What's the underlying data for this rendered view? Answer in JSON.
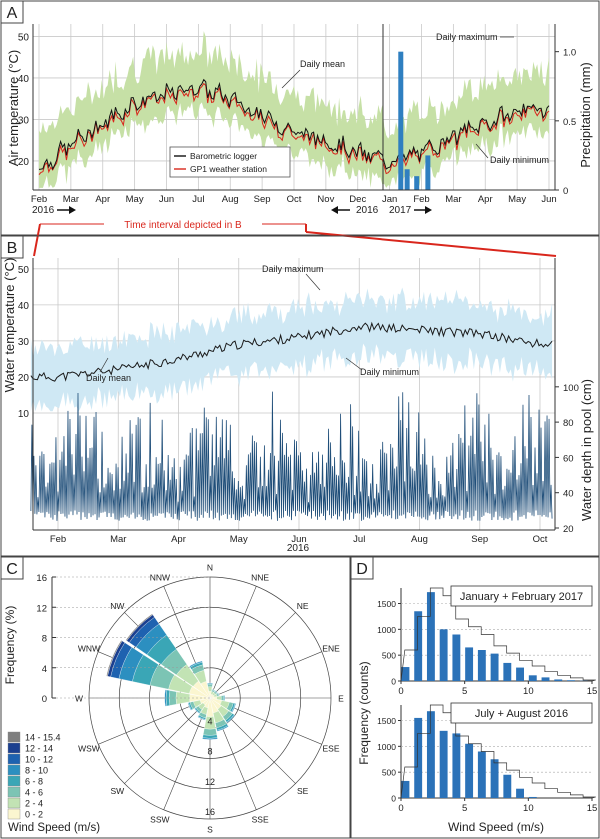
{
  "colors": {
    "frame": "#444444",
    "grid": "#c9c9c9",
    "air_band": "#c6e0a6",
    "logger_line": "#111111",
    "station_line": "#d9261c",
    "precip_bar": "#2f7fc0",
    "water_band": "#cfe8f4",
    "water_mean": "#1a1a1a",
    "depth_line": "#1f4e79",
    "interval_line": "#d9261c",
    "hist_bar": "#2b72b8"
  },
  "chart_data": [
    {
      "panel": "A",
      "type": "line",
      "label": "A",
      "ylabel": "Air temperature (°C)",
      "y2label": "Precipitation (mm)",
      "ylim": [
        13,
        53
      ],
      "yticks": [
        20,
        30,
        40,
        50
      ],
      "y2lim": [
        0,
        1.2
      ],
      "y2ticks": [
        "0",
        "0.5",
        "1.0"
      ],
      "x_months": [
        "Feb",
        "Mar",
        "Apr",
        "May",
        "Jun",
        "Jul",
        "Aug",
        "Sep",
        "Oct",
        "Nov",
        "Dec",
        "Jan",
        "Feb",
        "Mar",
        "Apr",
        "May",
        "Jun"
      ],
      "year_2016": "2016",
      "year_2016b": "2016",
      "year_2017": "2017",
      "legend": [
        "Barometric logger",
        "GP1 weather station"
      ],
      "annotations": {
        "daily_mean": "Daily mean",
        "daily_maximum": "Daily maximum",
        "daily_minimum": "Daily minimum"
      },
      "interval_label": "Time interval depicted in B",
      "series_mean_by_month": [
        18,
        24,
        29,
        34,
        36,
        38,
        35,
        31,
        27,
        25,
        22,
        20,
        22,
        26,
        29,
        32,
        33
      ],
      "band_width": 9,
      "precipitation_bars": [
        {
          "month_pos": 11.35,
          "value": 1.0
        },
        {
          "month_pos": 11.55,
          "value": 0.15
        },
        {
          "month_pos": 11.85,
          "value": 0.1
        },
        {
          "month_pos": 12.2,
          "value": 0.25
        }
      ]
    },
    {
      "panel": "B",
      "type": "line",
      "label": "B",
      "ylabel": "Water temperature (°C)",
      "y2label": "Water depth in pool (cm)",
      "temp_ylim": [
        10,
        53
      ],
      "temp_yticks": [
        10,
        20,
        30,
        40,
        50
      ],
      "depth_ylim": [
        20,
        105
      ],
      "depth_yticks": [
        20,
        40,
        60,
        80,
        100
      ],
      "x_months": [
        "Feb",
        "Mar",
        "Apr",
        "May",
        "Jun",
        "Jul",
        "Aug",
        "Sep",
        "Oct"
      ],
      "year": "2016",
      "annotations": {
        "daily_maximum": "Daily maximum",
        "daily_minimum": "Daily minimum",
        "daily_mean": "Daily mean"
      },
      "series_mean_by_month": [
        20,
        22,
        25,
        29,
        31,
        34,
        33,
        32,
        29
      ],
      "band_half_width": 8,
      "depth_baseline": 24,
      "depth_peak_max": 100
    },
    {
      "panel": "C",
      "type": "polar-bar",
      "label": "C",
      "ylabel": "Frequency (%)",
      "rlim": [
        0,
        16
      ],
      "rticks": [
        "0",
        "4",
        "8",
        "12",
        "16"
      ],
      "directions": [
        "N",
        "NNE",
        "NE",
        "ENE",
        "E",
        "ESE",
        "SE",
        "SSE",
        "S",
        "SSW",
        "SW",
        "WSW",
        "W",
        "WNW",
        "NW",
        "NNW"
      ],
      "frequencies": [
        2,
        1.2,
        1.2,
        1.3,
        2,
        3.5,
        4,
        4.5,
        5.5,
        3,
        2.5,
        3,
        6,
        14,
        13.5,
        5
      ],
      "legend_title": "Wind Speed (m/s)",
      "speed_bins": [
        "14 - 15.4",
        "12 - 14",
        "10 - 12",
        "8 - 10",
        "6 - 8",
        "4 - 6",
        "2 - 4",
        "0 - 2"
      ],
      "speed_colors": [
        "#7f7f7f",
        "#1b3f8f",
        "#1e62b0",
        "#2c8fc0",
        "#3aa6b6",
        "#7cc4b4",
        "#c2e3b4",
        "#fbf6d0"
      ]
    },
    {
      "panel": "D",
      "type": "bar",
      "label": "D",
      "ylabel": "Frequency (counts)",
      "xlabel": "Wind Speed (m/s)",
      "xlim": [
        0,
        15
      ],
      "xticks": [
        "0",
        "5",
        "10",
        "15"
      ],
      "subplots": [
        {
          "title": "January + February 2017",
          "ylim": [
            0,
            1800
          ],
          "yticks": [
            "0",
            "500",
            "1000",
            "1500"
          ],
          "bin_starts": [
            0,
            1,
            2,
            3,
            4,
            5,
            6,
            7,
            8,
            9,
            10,
            11,
            12,
            13,
            14
          ],
          "values": [
            270,
            1350,
            1720,
            1000,
            900,
            650,
            600,
            530,
            350,
            260,
            110,
            70,
            30,
            15,
            5
          ],
          "reference": [
            600,
            1250,
            1800,
            1650,
            1200,
            1050,
            900,
            680,
            540,
            400,
            290,
            180,
            110,
            60,
            20
          ]
        },
        {
          "title": "July + August 2016",
          "ylim": [
            0,
            1800
          ],
          "yticks": [
            "0",
            "500",
            "1000",
            "1500"
          ],
          "bin_starts": [
            0,
            1,
            2,
            3,
            4,
            5,
            6,
            7,
            8,
            9,
            10,
            11,
            12,
            13,
            14
          ],
          "values": [
            330,
            1550,
            1680,
            1300,
            1250,
            1050,
            900,
            750,
            450,
            180,
            20,
            0,
            0,
            0,
            0
          ],
          "reference": [
            600,
            1250,
            1800,
            1650,
            1200,
            1050,
            900,
            680,
            540,
            400,
            290,
            180,
            110,
            60,
            20
          ]
        }
      ]
    }
  ]
}
